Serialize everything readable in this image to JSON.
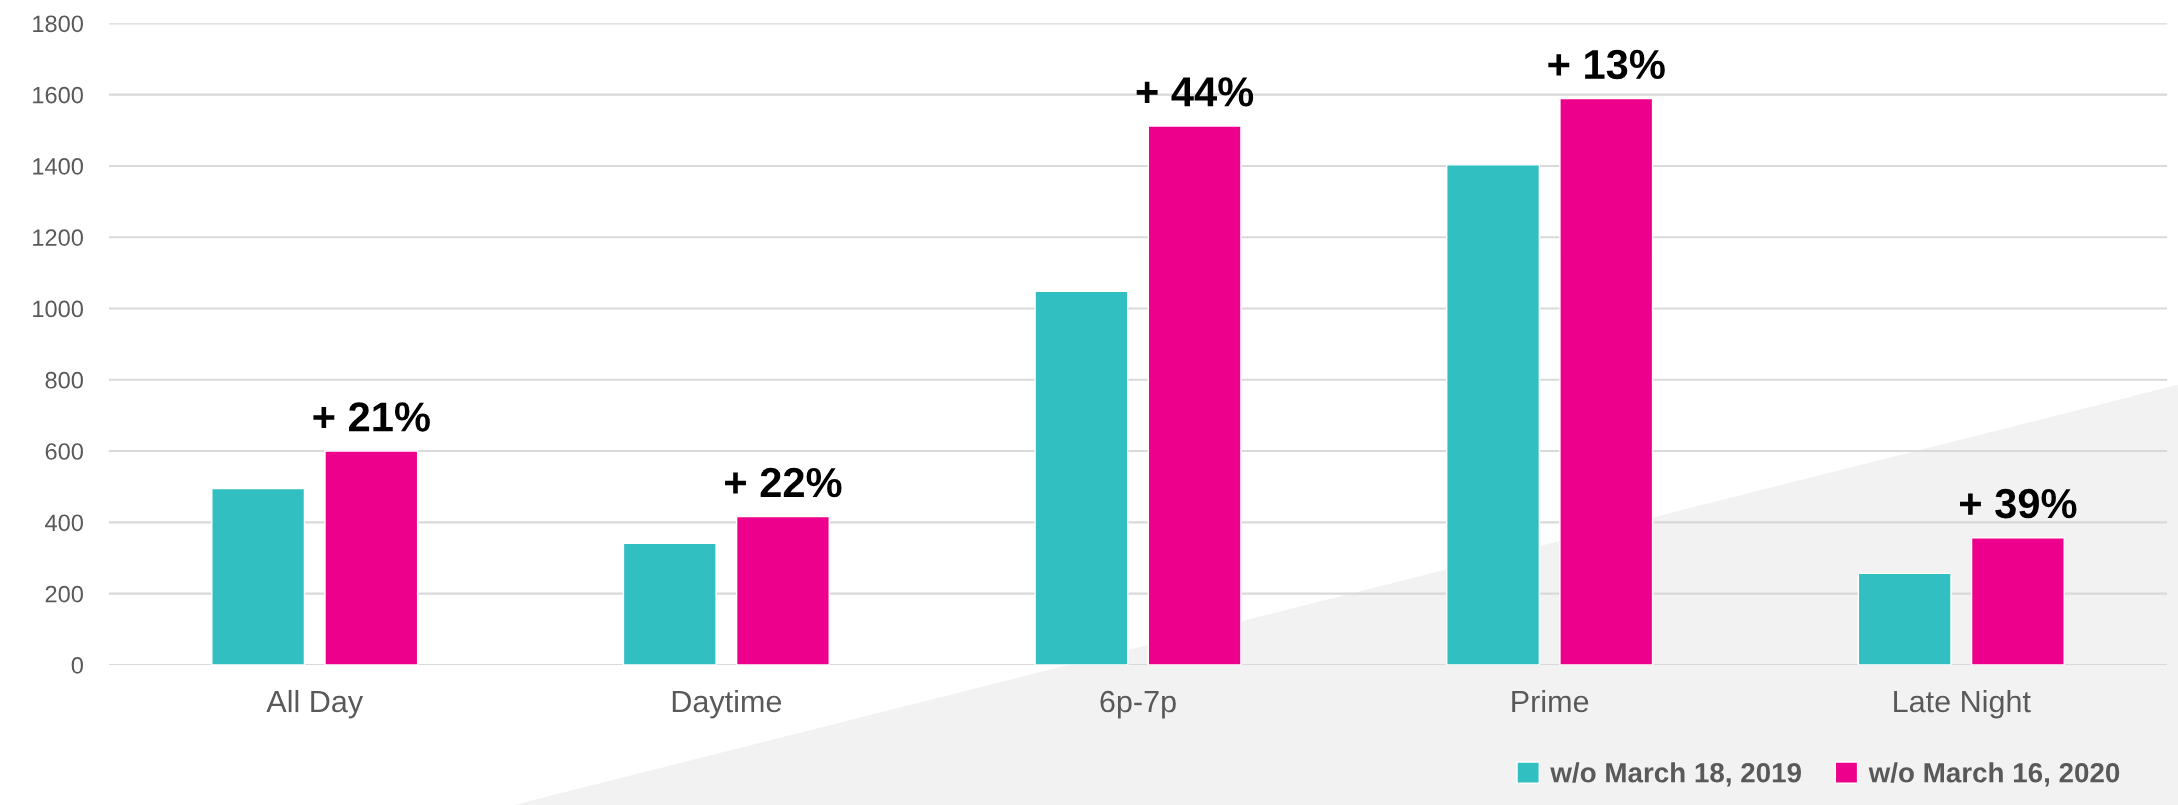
{
  "chart_data": {
    "type": "bar",
    "categories": [
      "All Day",
      "Daytime",
      "6p-7p",
      "Prime",
      "Late Night"
    ],
    "series": [
      {
        "name": "w/o March 18, 2019",
        "color": "#31bfc1",
        "values": [
          495,
          341,
          1048,
          1403,
          257
        ]
      },
      {
        "name": "w/o March 16, 2020",
        "color": "#ec008c",
        "values": [
          600,
          416,
          1512,
          1589,
          357
        ]
      }
    ],
    "annotations": [
      "+ 21%",
      "+ 22%",
      "+ 44%",
      "+ 13%",
      "+ 39%"
    ],
    "ylim": [
      0,
      1800
    ],
    "yticks": [
      0,
      200,
      400,
      600,
      800,
      1000,
      1200,
      1400,
      1600,
      1800
    ],
    "grid": "y",
    "legend": "bottom right"
  }
}
